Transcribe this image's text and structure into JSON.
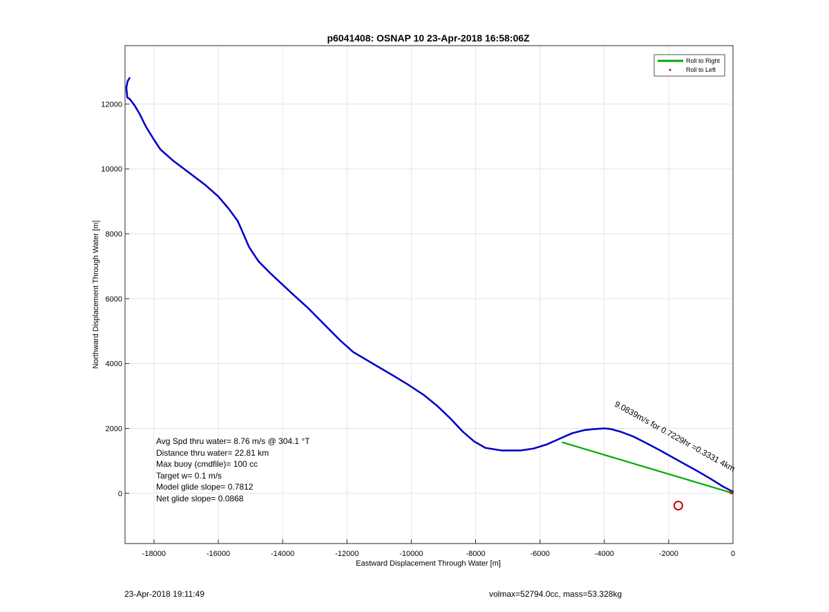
{
  "chart_data": {
    "type": "line",
    "title": "p6041408: OSNAP 10 23-Apr-2018 16:58:06Z",
    "xlabel": "Eastward Displacement Through Water [m]",
    "ylabel": "Northward Displacement Through Water [m]",
    "xlim": [
      -18900,
      0
    ],
    "ylim": [
      -1550,
      13800
    ],
    "xticks": [
      -18000,
      -16000,
      -14000,
      -12000,
      -10000,
      -8000,
      -6000,
      -4000,
      -2000,
      0
    ],
    "yticks": [
      0,
      2000,
      4000,
      6000,
      8000,
      10000,
      12000
    ],
    "grid": true,
    "legend": {
      "location": "top-right",
      "entries": [
        "Roll to Right",
        "Roll to Left"
      ]
    },
    "series": [
      {
        "name": "Roll to Right",
        "color": "#0000c8",
        "x": [
          -18760,
          -18820,
          -18860,
          -18830,
          -18750,
          -18600,
          -18450,
          -18250,
          -18000,
          -17800,
          -17400,
          -16800,
          -16400,
          -16000,
          -15700,
          -15400,
          -15220,
          -15050,
          -14950,
          -14750,
          -14400,
          -13700,
          -13200,
          -12700,
          -12200,
          -11800,
          -11200,
          -10600,
          -10100,
          -9600,
          -9200,
          -8800,
          -8400,
          -8050,
          -7700,
          -7200,
          -6800,
          -6600,
          -6200,
          -5800,
          -5300,
          -5000,
          -4600,
          -4300,
          -4000,
          -3800,
          -3500,
          -3100,
          -2700,
          -2300,
          -1900,
          -1500,
          -1100,
          -700,
          -300,
          0
        ],
        "y": [
          12800,
          12700,
          12500,
          12200,
          12150,
          11950,
          11700,
          11300,
          10900,
          10600,
          10250,
          9800,
          9500,
          9150,
          8800,
          8400,
          8000,
          7600,
          7450,
          7150,
          6800,
          6150,
          5700,
          5200,
          4700,
          4350,
          4000,
          3650,
          3350,
          3020,
          2700,
          2320,
          1900,
          1600,
          1400,
          1320,
          1320,
          1320,
          1380,
          1500,
          1720,
          1850,
          1950,
          1980,
          2000,
          1980,
          1900,
          1750,
          1550,
          1340,
          1120,
          900,
          680,
          450,
          200,
          50
        ]
      },
      {
        "name": "Roll to Left",
        "color": "#00aa00",
        "x": [
          -5300,
          0
        ],
        "y": [
          1570,
          0
        ]
      }
    ],
    "markers": [
      {
        "label": "circle",
        "x": -1700,
        "y": -380,
        "color": "#cc0000"
      }
    ],
    "annotation": {
      "text": "9.0839m/s for 0.7229hr =0.3331 4km",
      "x": -3700,
      "y": 2700,
      "angle_deg": 29
    }
  },
  "stats": {
    "line1": "Avg Spd thru water=  8.76 m/s @ 304.1 °T",
    "line2": "Distance thru water= 22.81 km",
    "line3": "Max buoy (cmdfile)= 100 cc",
    "line4": "Target w= 0.1 m/s",
    "line5": "Model glide slope= 0.7812",
    "line6": "Net glide slope= 0.0868"
  },
  "footer": {
    "timestamp": "23-Apr-2018 19:11:49",
    "volmass": "volmax=52794.0cc, mass=53.328kg"
  }
}
